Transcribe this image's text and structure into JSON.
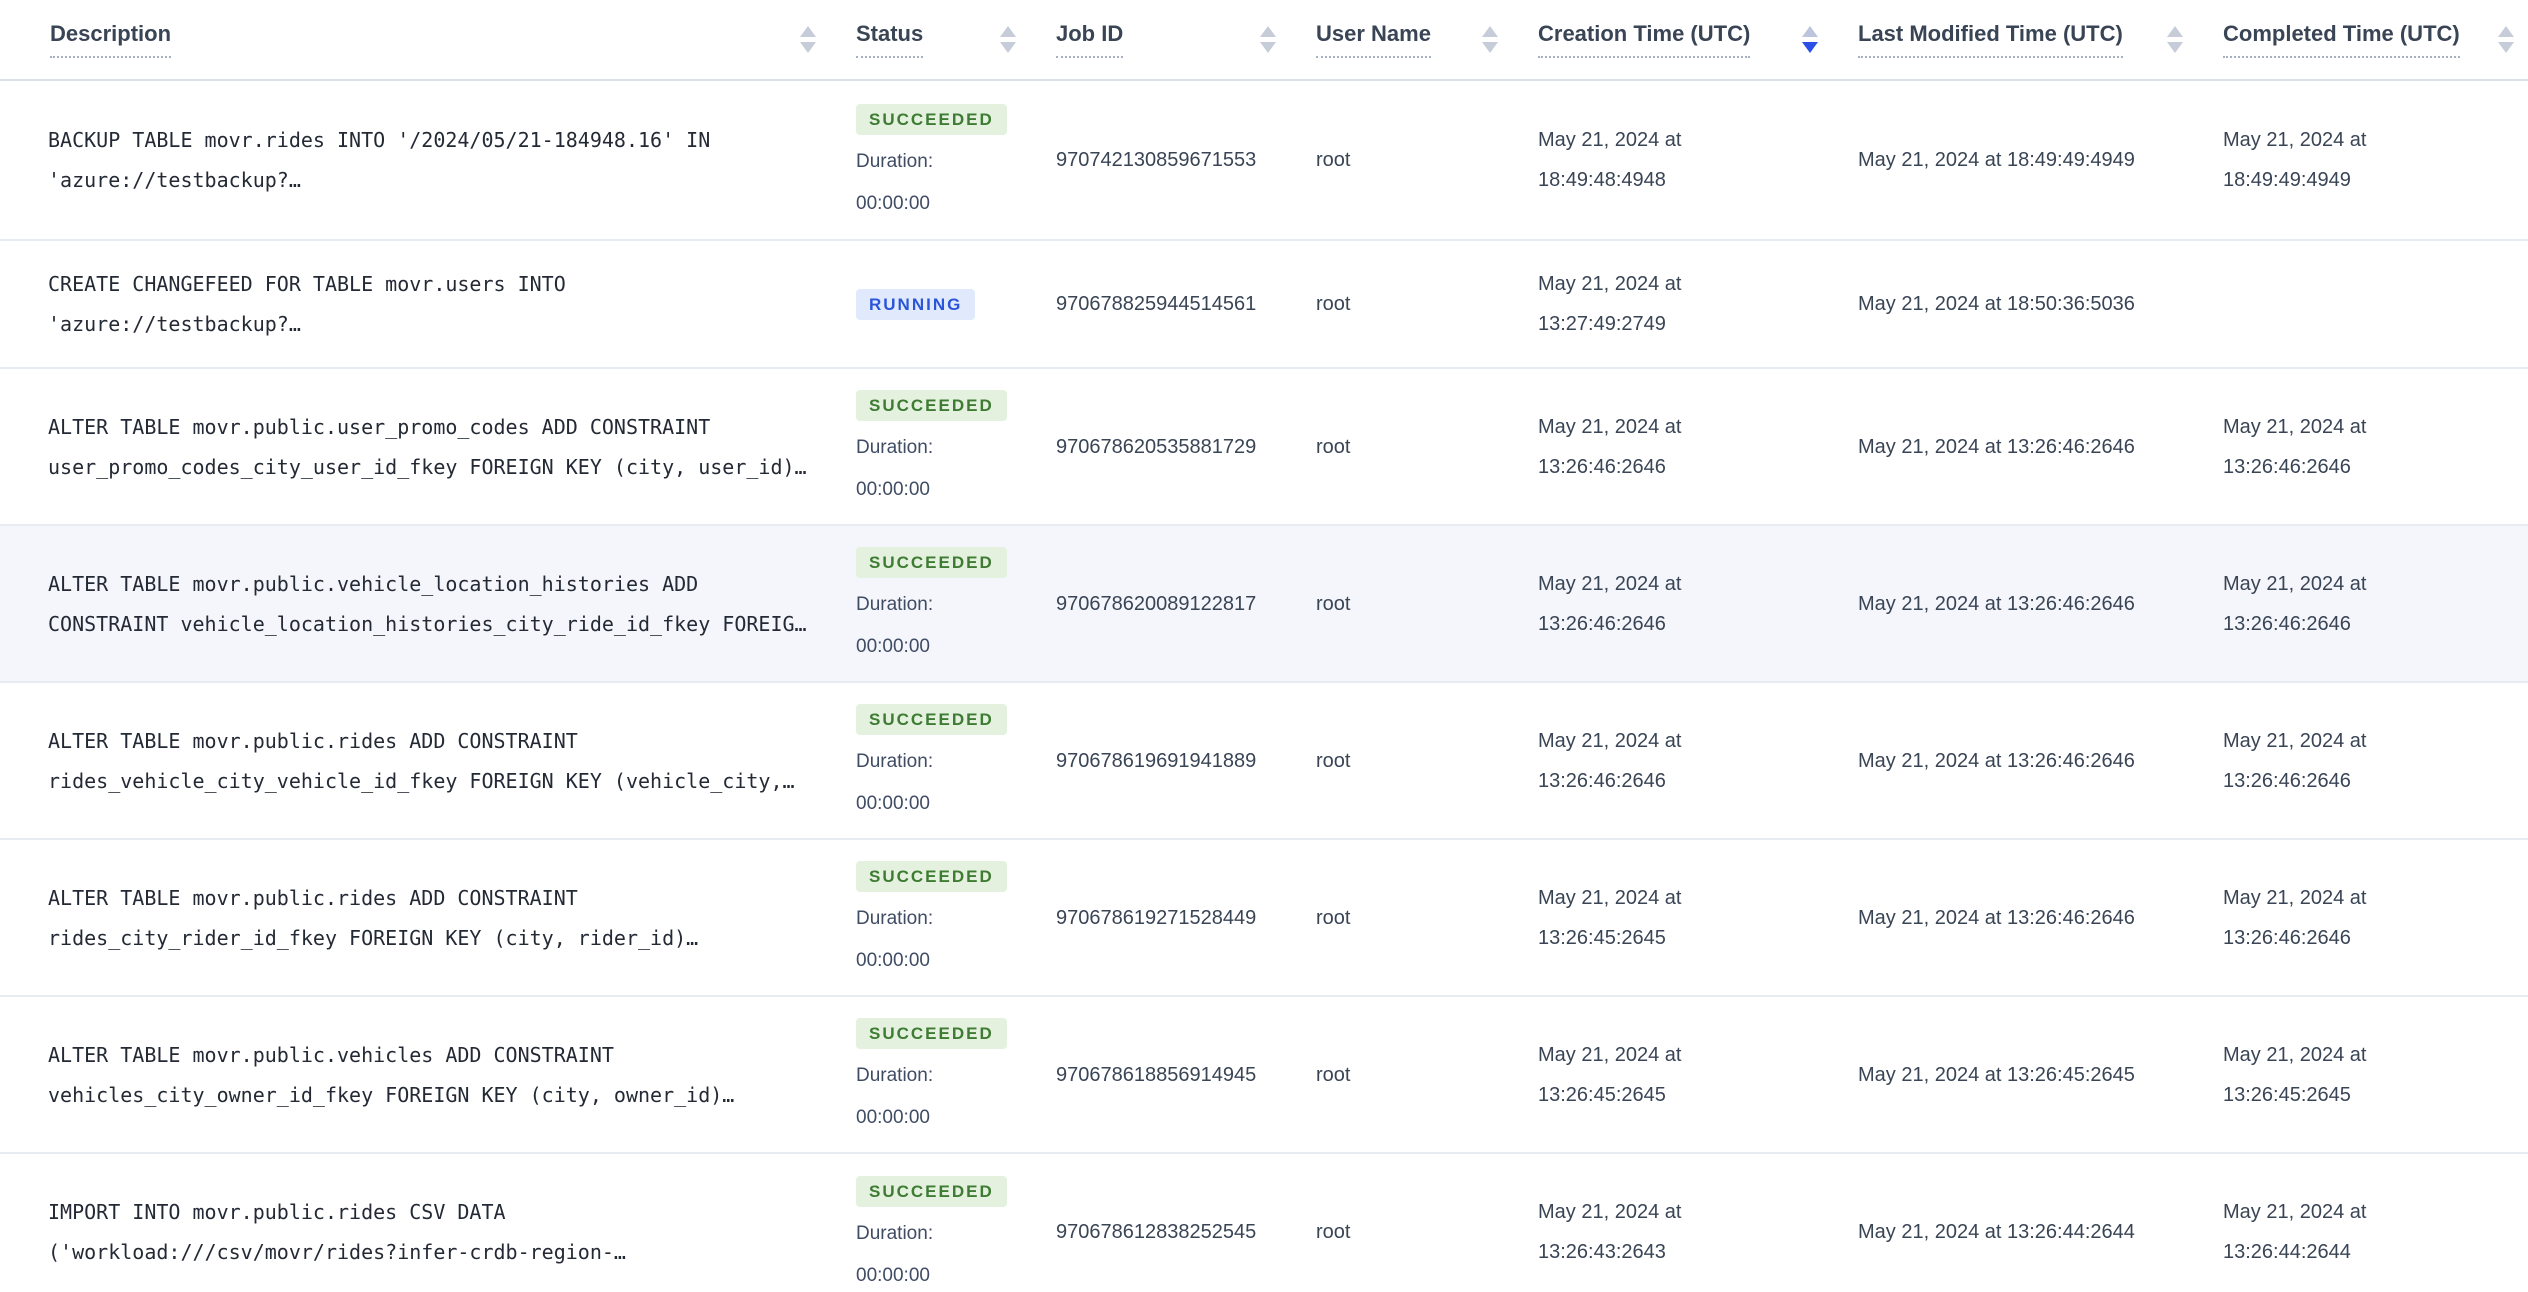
{
  "colors": {
    "succeeded_text": "#3E7B33",
    "succeeded_bg": "#E4F1DE",
    "running_text": "#2A55D9",
    "running_bg": "#E0EAFC",
    "sort_active_arrow": "#2A4FE4",
    "row_highlight_bg": "#F4F6FB"
  },
  "table": {
    "duration_label": "Duration:",
    "columns": [
      {
        "id": "description",
        "label": "Description",
        "sort_state": "none"
      },
      {
        "id": "status",
        "label": "Status",
        "sort_state": "none"
      },
      {
        "id": "job-id",
        "label": "Job ID",
        "sort_state": "none"
      },
      {
        "id": "user-name",
        "label": "User Name",
        "sort_state": "none"
      },
      {
        "id": "creation-time",
        "label": "Creation Time (UTC)",
        "sort_state": "desc"
      },
      {
        "id": "last-modified-time",
        "label": "Last Modified Time (UTC)",
        "sort_state": "none"
      },
      {
        "id": "completed-time",
        "label": "Completed Time (UTC)",
        "sort_state": "none"
      }
    ],
    "rows": [
      {
        "description": "BACKUP TABLE movr.rides INTO '/2024/05/21-184948.16' IN 'azure://testbackup?…",
        "status": "SUCCEEDED",
        "duration": "00:00:00",
        "job_id": "970742130859671553",
        "user_name": "root",
        "creation_time": "May 21, 2024 at 18:49:48:4948",
        "last_modified_time": "May 21, 2024 at 18:49:49:4949",
        "completed_time": "May 21, 2024 at 18:49:49:4949",
        "highlighted": false
      },
      {
        "description": "CREATE CHANGEFEED FOR TABLE movr.users INTO 'azure://testbackup?…",
        "status": "RUNNING",
        "duration": "",
        "job_id": "970678825944514561",
        "user_name": "root",
        "creation_time": "May 21, 2024 at 13:27:49:2749",
        "last_modified_time": "May 21, 2024 at 18:50:36:5036",
        "completed_time": "",
        "highlighted": false
      },
      {
        "description": "ALTER TABLE movr.public.user_promo_codes ADD CONSTRAINT user_promo_codes_city_user_id_fkey FOREIGN KEY (city, user_id)…",
        "status": "SUCCEEDED",
        "duration": "00:00:00",
        "job_id": "970678620535881729",
        "user_name": "root",
        "creation_time": "May 21, 2024 at 13:26:46:2646",
        "last_modified_time": "May 21, 2024 at 13:26:46:2646",
        "completed_time": "May 21, 2024 at 13:26:46:2646",
        "highlighted": false
      },
      {
        "description": "ALTER TABLE movr.public.vehicle_location_histories ADD CONSTRAINT vehicle_location_histories_city_ride_id_fkey FOREIG…",
        "status": "SUCCEEDED",
        "duration": "00:00:00",
        "job_id": "970678620089122817",
        "user_name": "root",
        "creation_time": "May 21, 2024 at 13:26:46:2646",
        "last_modified_time": "May 21, 2024 at 13:26:46:2646",
        "completed_time": "May 21, 2024 at 13:26:46:2646",
        "highlighted": true
      },
      {
        "description": "ALTER TABLE movr.public.rides ADD CONSTRAINT rides_vehicle_city_vehicle_id_fkey FOREIGN KEY (vehicle_city,…",
        "status": "SUCCEEDED",
        "duration": "00:00:00",
        "job_id": "970678619691941889",
        "user_name": "root",
        "creation_time": "May 21, 2024 at 13:26:46:2646",
        "last_modified_time": "May 21, 2024 at 13:26:46:2646",
        "completed_time": "May 21, 2024 at 13:26:46:2646",
        "highlighted": false
      },
      {
        "description": "ALTER TABLE movr.public.rides ADD CONSTRAINT rides_city_rider_id_fkey FOREIGN KEY (city, rider_id)…",
        "status": "SUCCEEDED",
        "duration": "00:00:00",
        "job_id": "970678619271528449",
        "user_name": "root",
        "creation_time": "May 21, 2024 at 13:26:45:2645",
        "last_modified_time": "May 21, 2024 at 13:26:46:2646",
        "completed_time": "May 21, 2024 at 13:26:46:2646",
        "highlighted": false
      },
      {
        "description": "ALTER TABLE movr.public.vehicles ADD CONSTRAINT vehicles_city_owner_id_fkey FOREIGN KEY (city, owner_id)…",
        "status": "SUCCEEDED",
        "duration": "00:00:00",
        "job_id": "970678618856914945",
        "user_name": "root",
        "creation_time": "May 21, 2024 at 13:26:45:2645",
        "last_modified_time": "May 21, 2024 at 13:26:45:2645",
        "completed_time": "May 21, 2024 at 13:26:45:2645",
        "highlighted": false
      },
      {
        "description": "IMPORT INTO movr.public.rides CSV DATA ('workload:///csv/movr/rides?infer-crdb-region-…",
        "status": "SUCCEEDED",
        "duration": "00:00:00",
        "job_id": "970678612838252545",
        "user_name": "root",
        "creation_time": "May 21, 2024 at 13:26:43:2643",
        "last_modified_time": "May 21, 2024 at 13:26:44:2644",
        "completed_time": "May 21, 2024 at 13:26:44:2644",
        "highlighted": false
      }
    ]
  }
}
